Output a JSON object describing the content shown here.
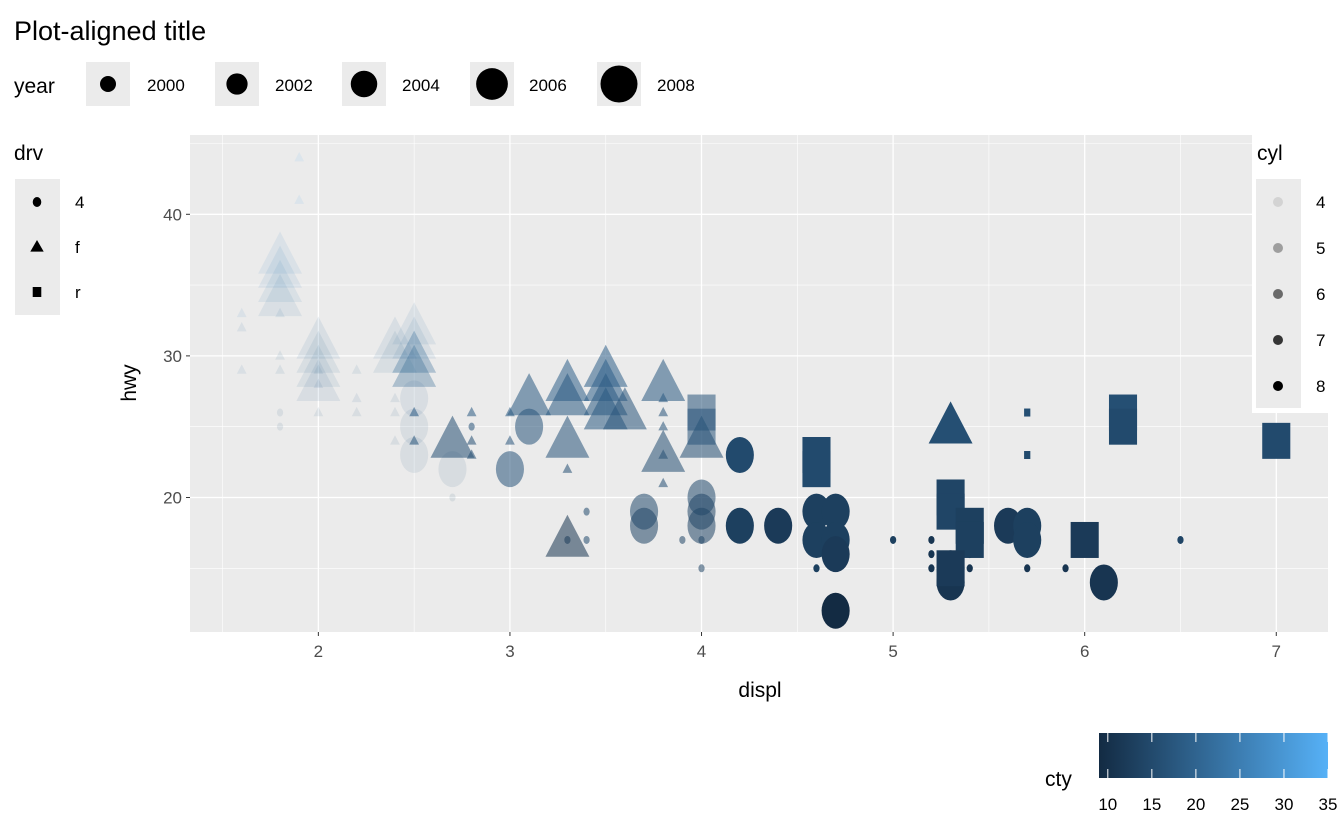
{
  "chart_data": {
    "type": "scatter",
    "title": "Plot-aligned title",
    "xlabel": "displ",
    "ylabel": "hwy",
    "xlim": [
      1.33,
      7.27
    ],
    "ylim": [
      10.5,
      45.6
    ],
    "x_ticks": [
      "2",
      "3",
      "4",
      "5",
      "6",
      "7"
    ],
    "y_ticks": [
      "20",
      "30",
      "40"
    ],
    "grid": true,
    "point_fields": [
      "displ",
      "hwy",
      "drv",
      "year",
      "cyl",
      "cty"
    ],
    "points": [
      [
        1.6,
        33,
        "f",
        1999,
        4,
        28
      ],
      [
        1.6,
        32,
        "f",
        1999,
        4,
        24
      ],
      [
        1.6,
        29,
        "f",
        1999,
        4,
        23
      ],
      [
        1.8,
        29,
        "f",
        1999,
        4,
        21
      ],
      [
        1.8,
        30,
        "f",
        1999,
        4,
        21
      ],
      [
        1.8,
        33,
        "f",
        1999,
        4,
        24
      ],
      [
        1.9,
        44,
        "f",
        1999,
        4,
        35
      ],
      [
        1.9,
        41,
        "f",
        1999,
        4,
        33
      ],
      [
        2.0,
        29,
        "f",
        1999,
        4,
        21
      ],
      [
        2.0,
        26,
        "f",
        1999,
        4,
        19
      ],
      [
        2.2,
        29,
        "f",
        1999,
        4,
        21
      ],
      [
        2.2,
        27,
        "f",
        1999,
        4,
        20
      ],
      [
        2.2,
        26,
        "f",
        1999,
        4,
        19
      ],
      [
        2.4,
        27,
        "f",
        1999,
        4,
        19
      ],
      [
        2.4,
        24,
        "f",
        1999,
        4,
        18
      ],
      [
        2.0,
        28,
        "f",
        1999,
        4,
        20
      ],
      [
        2.4,
        26,
        "f",
        1999,
        4,
        19
      ],
      [
        2.5,
        26,
        "f",
        1999,
        6,
        18
      ],
      [
        2.5,
        24,
        "f",
        1999,
        6,
        17
      ],
      [
        2.8,
        26,
        "f",
        1999,
        6,
        18
      ],
      [
        2.8,
        24,
        "f",
        1999,
        6,
        16
      ],
      [
        2.8,
        23,
        "f",
        1999,
        6,
        16
      ],
      [
        3.0,
        26,
        "f",
        1999,
        6,
        18
      ],
      [
        3.0,
        24,
        "f",
        1999,
        6,
        17
      ],
      [
        3.3,
        22,
        "f",
        1999,
        6,
        16
      ],
      [
        3.8,
        27,
        "f",
        1999,
        6,
        18
      ],
      [
        3.8,
        26,
        "f",
        1999,
        6,
        17
      ],
      [
        3.8,
        25,
        "f",
        1999,
        6,
        17
      ],
      [
        3.8,
        23,
        "f",
        1999,
        6,
        16
      ],
      [
        3.8,
        21,
        "f",
        1999,
        6,
        16
      ],
      [
        1.8,
        26,
        "4",
        1999,
        4,
        18
      ],
      [
        1.8,
        25,
        "4",
        1999,
        4,
        18
      ],
      [
        2.7,
        20,
        "4",
        1999,
        4,
        15
      ],
      [
        2.8,
        25,
        "4",
        1999,
        6,
        17
      ],
      [
        3.4,
        19,
        "4",
        1999,
        6,
        15
      ],
      [
        3.4,
        17,
        "4",
        1999,
        6,
        15
      ],
      [
        3.3,
        17,
        "4",
        1999,
        6,
        14
      ],
      [
        3.9,
        17,
        "4",
        1999,
        6,
        14
      ],
      [
        4.0,
        17,
        "4",
        1999,
        6,
        14
      ],
      [
        4.0,
        15,
        "4",
        1999,
        6,
        14
      ],
      [
        4.6,
        17,
        "4",
        1999,
        8,
        13
      ],
      [
        4.6,
        15,
        "4",
        1999,
        8,
        13
      ],
      [
        5.0,
        17,
        "4",
        1999,
        8,
        13
      ],
      [
        5.2,
        17,
        "4",
        1999,
        8,
        11
      ],
      [
        5.2,
        16,
        "4",
        1999,
        8,
        11
      ],
      [
        5.2,
        15,
        "4",
        1999,
        8,
        11
      ],
      [
        5.4,
        16,
        "4",
        1999,
        8,
        11
      ],
      [
        5.4,
        15,
        "4",
        1999,
        8,
        11
      ],
      [
        5.7,
        15,
        "4",
        1999,
        8,
        11
      ],
      [
        5.9,
        15,
        "4",
        1999,
        8,
        11
      ],
      [
        6.5,
        17,
        "4",
        1999,
        8,
        14
      ],
      [
        5.7,
        26,
        "r",
        1999,
        8,
        16
      ],
      [
        5.7,
        23,
        "r",
        1999,
        8,
        15
      ],
      [
        1.8,
        37,
        "f",
        2008,
        4,
        28
      ],
      [
        1.8,
        36,
        "f",
        2008,
        4,
        26
      ],
      [
        1.8,
        35,
        "f",
        2008,
        4,
        25
      ],
      [
        1.8,
        34,
        "f",
        2008,
        4,
        24
      ],
      [
        2.0,
        31,
        "f",
        2008,
        4,
        22
      ],
      [
        2.0,
        30,
        "f",
        2008,
        4,
        21
      ],
      [
        2.0,
        29,
        "f",
        2008,
        4,
        21
      ],
      [
        2.0,
        28,
        "f",
        2008,
        4,
        20
      ],
      [
        2.4,
        31,
        "f",
        2008,
        4,
        22
      ],
      [
        2.4,
        30,
        "f",
        2008,
        4,
        21
      ],
      [
        2.5,
        32,
        "f",
        2008,
        4,
        23
      ],
      [
        2.5,
        31,
        "f",
        2008,
        4,
        22
      ],
      [
        2.5,
        30,
        "f",
        2008,
        5,
        21
      ],
      [
        2.5,
        29,
        "f",
        2008,
        5,
        20
      ],
      [
        2.7,
        24,
        "f",
        2008,
        6,
        16
      ],
      [
        3.1,
        27,
        "f",
        2008,
        6,
        18
      ],
      [
        3.3,
        28,
        "f",
        2008,
        6,
        19
      ],
      [
        3.3,
        27,
        "f",
        2008,
        6,
        18
      ],
      [
        3.3,
        24,
        "f",
        2008,
        6,
        17
      ],
      [
        3.3,
        17,
        "f",
        2008,
        6,
        11
      ],
      [
        3.5,
        29,
        "f",
        2008,
        6,
        19
      ],
      [
        3.5,
        28,
        "f",
        2008,
        6,
        19
      ],
      [
        3.5,
        27,
        "f",
        2008,
        6,
        18
      ],
      [
        3.5,
        26,
        "f",
        2008,
        6,
        18
      ],
      [
        3.6,
        26,
        "f",
        2008,
        6,
        17
      ],
      [
        3.8,
        28,
        "f",
        2008,
        6,
        18
      ],
      [
        3.8,
        23,
        "f",
        2008,
        6,
        16
      ],
      [
        4.0,
        24,
        "f",
        2008,
        6,
        16
      ],
      [
        5.3,
        25,
        "f",
        2008,
        8,
        16
      ],
      [
        2.5,
        27,
        "4",
        2008,
        4,
        20
      ],
      [
        2.5,
        25,
        "4",
        2008,
        4,
        19
      ],
      [
        2.5,
        23,
        "4",
        2008,
        4,
        19
      ],
      [
        2.7,
        22,
        "4",
        2008,
        4,
        18
      ],
      [
        3.0,
        22,
        "4",
        2008,
        6,
        17
      ],
      [
        3.1,
        25,
        "4",
        2008,
        6,
        17
      ],
      [
        3.7,
        19,
        "4",
        2008,
        6,
        15
      ],
      [
        3.7,
        18,
        "4",
        2008,
        6,
        14
      ],
      [
        4.0,
        20,
        "4",
        2008,
        6,
        15
      ],
      [
        4.0,
        19,
        "4",
        2008,
        6,
        14
      ],
      [
        4.0,
        18,
        "4",
        2008,
        6,
        14
      ],
      [
        4.2,
        23,
        "4",
        2008,
        8,
        15
      ],
      [
        4.2,
        18,
        "4",
        2008,
        8,
        13
      ],
      [
        4.4,
        18,
        "4",
        2008,
        8,
        12
      ],
      [
        4.6,
        19,
        "4",
        2008,
        8,
        13
      ],
      [
        4.6,
        17,
        "4",
        2008,
        8,
        13
      ],
      [
        4.7,
        19,
        "4",
        2008,
        8,
        13
      ],
      [
        4.7,
        17,
        "4",
        2008,
        8,
        13
      ],
      [
        4.7,
        16,
        "4",
        2008,
        8,
        12
      ],
      [
        4.7,
        12,
        "4",
        2008,
        8,
        9
      ],
      [
        5.3,
        14,
        "4",
        2008,
        8,
        11
      ],
      [
        5.3,
        15,
        "4",
        2008,
        8,
        11
      ],
      [
        5.6,
        18,
        "4",
        2008,
        8,
        12
      ],
      [
        5.7,
        18,
        "4",
        2008,
        8,
        13
      ],
      [
        5.7,
        17,
        "4",
        2008,
        8,
        13
      ],
      [
        6.1,
        14,
        "4",
        2008,
        8,
        11
      ],
      [
        4.0,
        26,
        "r",
        2008,
        6,
        17
      ],
      [
        4.0,
        25,
        "r",
        2008,
        6,
        17
      ],
      [
        4.6,
        23,
        "r",
        2008,
        8,
        15
      ],
      [
        4.6,
        22,
        "r",
        2008,
        8,
        15
      ],
      [
        5.3,
        20,
        "r",
        2008,
        8,
        14
      ],
      [
        5.3,
        19,
        "r",
        2008,
        8,
        14
      ],
      [
        5.4,
        18,
        "r",
        2008,
        8,
        13
      ],
      [
        5.4,
        17,
        "r",
        2008,
        8,
        13
      ],
      [
        5.3,
        15,
        "r",
        2008,
        8,
        12
      ],
      [
        6.2,
        26,
        "r",
        2008,
        8,
        16
      ],
      [
        6.2,
        25,
        "r",
        2008,
        8,
        15
      ],
      [
        7.0,
        24,
        "r",
        2008,
        8,
        15
      ],
      [
        6.0,
        17,
        "r",
        2008,
        8,
        12
      ]
    ],
    "legends": {
      "year": {
        "title": "year",
        "labels": [
          "2000",
          "2002",
          "2004",
          "2006",
          "2008"
        ],
        "values": [
          2000,
          2002,
          2004,
          2006,
          2008
        ],
        "placement": "top"
      },
      "drv": {
        "title": "drv",
        "labels": [
          "4",
          "f",
          "r"
        ],
        "shapes": [
          "circle",
          "triangle",
          "square"
        ],
        "placement": "left"
      },
      "cyl": {
        "title": "cyl",
        "labels": [
          "4",
          "5",
          "6",
          "7",
          "8"
        ],
        "values": [
          4,
          5,
          6,
          7,
          8
        ],
        "placement": "right"
      },
      "cty": {
        "title": "cty",
        "labels": [
          "10",
          "15",
          "20",
          "25",
          "30",
          "35"
        ],
        "values": [
          10,
          15,
          20,
          25,
          30,
          35
        ],
        "limits": [
          9,
          35
        ],
        "low_color": "#132B43",
        "high_color": "#56B1F7",
        "placement": "bottom-right"
      }
    },
    "size_range_year": [
      1999,
      2008
    ],
    "alpha_range_cyl": [
      0.1,
      1
    ]
  },
  "colors": {
    "panel": "#EBEBEB",
    "grid": "#FFFFFF",
    "legend_key": "#EBEBEB"
  }
}
